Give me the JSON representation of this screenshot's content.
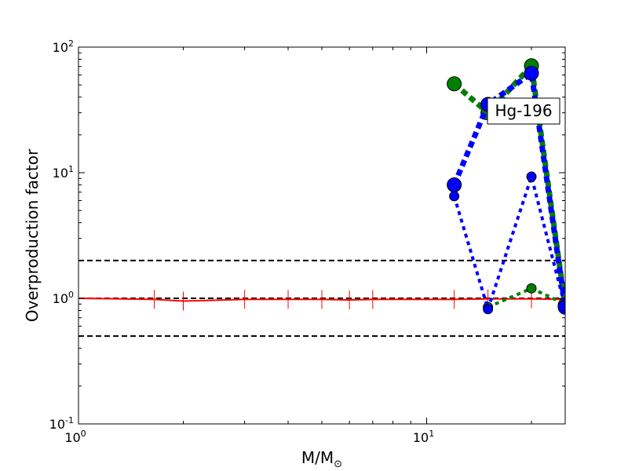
{
  "chart_data": {
    "type": "line",
    "xlabel": "M/M",
    "xlabel_sub": "⊙",
    "ylabel": "Overproduction factor",
    "xscale": "log",
    "yscale": "log",
    "xlim": [
      1,
      25
    ],
    "ylim": [
      0.1,
      100
    ],
    "x_ticks": [
      {
        "value": 1,
        "base": "10",
        "exp": "0"
      },
      {
        "value": 10,
        "base": "10",
        "exp": "1"
      }
    ],
    "y_ticks": [
      {
        "value": 0.1,
        "base": "10",
        "exp": "-1"
      },
      {
        "value": 1,
        "base": "10",
        "exp": "0"
      },
      {
        "value": 10,
        "base": "10",
        "exp": "1"
      },
      {
        "value": 100,
        "base": "10",
        "exp": "2"
      }
    ],
    "reference_lines": [
      {
        "y": 2.0,
        "style": "dashed",
        "color": "#000000"
      },
      {
        "y": 1.0,
        "style": "dashed",
        "color": "#000000"
      },
      {
        "y": 0.5,
        "style": "dashed",
        "color": "#000000"
      }
    ],
    "series": [
      {
        "color": "#ff0000",
        "style": "solid",
        "marker": "vline",
        "x": [
          1.0,
          1.65,
          2.0,
          3.0,
          4.0,
          5.0,
          6.0,
          7.0,
          12.0,
          15.0,
          20.0,
          25.0
        ],
        "y": [
          1.0,
          0.98,
          0.95,
          0.98,
          0.98,
          0.98,
          0.97,
          0.98,
          0.98,
          0.99,
          0.99,
          0.98
        ]
      },
      {
        "color": "#008000",
        "style": "dotted-thin",
        "marker": "circle-small",
        "x": [
          15.0,
          20.0,
          25.0
        ],
        "y": [
          0.85,
          1.2,
          0.9
        ]
      },
      {
        "color": "#008000",
        "style": "dotted-thick",
        "marker": "circle-large",
        "x": [
          12.0,
          15.0,
          20.0,
          25.0
        ],
        "y": [
          51.0,
          30.0,
          71.0,
          0.88
        ]
      },
      {
        "color": "#0000ff",
        "style": "dotted-thin",
        "marker": "circle-small",
        "x": [
          12.0,
          15.0,
          20.0,
          25.0
        ],
        "y": [
          6.5,
          0.82,
          9.3,
          0.85
        ]
      },
      {
        "color": "#0000ff",
        "style": "dotted-thick",
        "marker": "circle-large",
        "x": [
          12.0,
          15.0,
          20.0,
          25.0
        ],
        "y": [
          8.0,
          35.0,
          62.0,
          0.85
        ]
      }
    ],
    "annotation": {
      "text": "Hg-196",
      "position": "top-right"
    },
    "grid": false
  }
}
